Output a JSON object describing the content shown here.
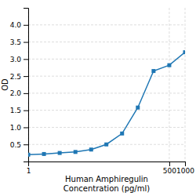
{
  "chart_data": {
    "type": "line",
    "marker": "square",
    "log": "x",
    "grid": true,
    "x": [
      1,
      2,
      4,
      8,
      16,
      31.25,
      62.5,
      125,
      250,
      500,
      1000
    ],
    "values": [
      0.2,
      0.22,
      0.25,
      0.28,
      0.35,
      0.5,
      0.82,
      1.58,
      2.65,
      2.82,
      3.2
    ],
    "xlabel": "Human Amphiregulin\nConcentration (pg/ml)",
    "ylabel": "OD",
    "xlim": [
      1,
      1000
    ],
    "ylim": [
      0,
      4.5
    ],
    "xticks": [
      1,
      500,
      1000
    ],
    "yticks": [
      0.5,
      {
        "value": 1.0,
        "label": "1.0"
      },
      1.5,
      {
        "value": 2.0,
        "label": "2.0"
      },
      2.5,
      {
        "value": 3.0,
        "label": "3.0"
      },
      3.5,
      {
        "value": 4.0,
        "label": "4.0"
      }
    ]
  }
}
